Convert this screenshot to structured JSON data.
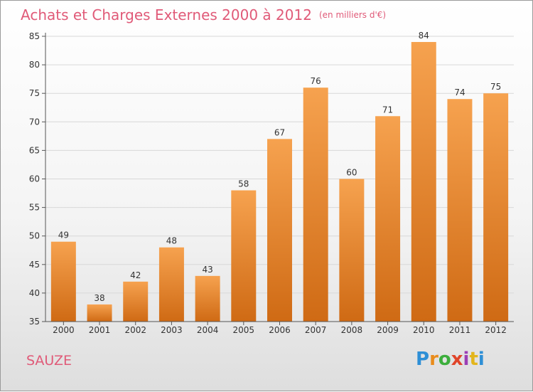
{
  "chart_data": {
    "type": "bar",
    "title": "Achats et Charges Externes 2000 à 2012",
    "subtitle": "(en milliers d'€)",
    "categories": [
      "2000",
      "2001",
      "2002",
      "2003",
      "2004",
      "2005",
      "2006",
      "2007",
      "2008",
      "2009",
      "2010",
      "2011",
      "2012"
    ],
    "values": [
      49,
      38,
      42,
      48,
      43,
      58,
      67,
      76,
      60,
      71,
      84,
      74,
      75
    ],
    "ylim": [
      35,
      85
    ],
    "yticks": [
      35,
      40,
      45,
      50,
      55,
      60,
      65,
      70,
      75,
      80,
      85
    ],
    "grid": true,
    "bar_color_top": "#f6a24f",
    "bar_color_bottom": "#cf6a14"
  },
  "footer": {
    "commune": "SAUZE",
    "brand": "Proxiti",
    "brand_colors": [
      "#2e8fd6",
      "#e98c1c",
      "#3cae3c",
      "#e0452a",
      "#9b3fb5",
      "#e3b51c",
      "#2e8fd6"
    ]
  }
}
